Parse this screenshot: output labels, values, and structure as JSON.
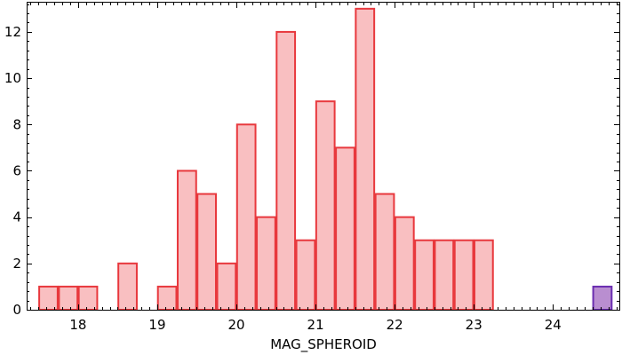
{
  "chart_data": {
    "type": "bar",
    "subtype": "histogram",
    "xlabel": "MAG_SPHEROID",
    "ylabel": "",
    "xlim": [
      17.35,
      24.85
    ],
    "ylim": [
      0,
      13.3
    ],
    "bin_width": 0.25,
    "x_ticks": [
      18,
      19,
      20,
      21,
      22,
      23,
      24
    ],
    "y_ticks": [
      0,
      2,
      4,
      6,
      8,
      10,
      12
    ],
    "grid": false,
    "series": [
      {
        "fill": "#f9bfc1",
        "stroke": "#e8383d",
        "bins": [
          {
            "x0": 17.5,
            "x1": 17.75,
            "count": 1
          },
          {
            "x0": 17.75,
            "x1": 18.0,
            "count": 1
          },
          {
            "x0": 18.0,
            "x1": 18.25,
            "count": 1
          },
          {
            "x0": 18.5,
            "x1": 18.75,
            "count": 2
          },
          {
            "x0": 19.0,
            "x1": 19.25,
            "count": 1
          },
          {
            "x0": 19.25,
            "x1": 19.5,
            "count": 6
          },
          {
            "x0": 19.5,
            "x1": 19.75,
            "count": 5
          },
          {
            "x0": 19.75,
            "x1": 20.0,
            "count": 2
          },
          {
            "x0": 20.0,
            "x1": 20.25,
            "count": 8
          },
          {
            "x0": 20.25,
            "x1": 20.5,
            "count": 4
          },
          {
            "x0": 20.5,
            "x1": 20.75,
            "count": 12
          },
          {
            "x0": 20.75,
            "x1": 21.0,
            "count": 3
          },
          {
            "x0": 21.0,
            "x1": 21.25,
            "count": 9
          },
          {
            "x0": 21.25,
            "x1": 21.5,
            "count": 7
          },
          {
            "x0": 21.5,
            "x1": 21.75,
            "count": 13
          },
          {
            "x0": 21.75,
            "x1": 22.0,
            "count": 5
          },
          {
            "x0": 22.0,
            "x1": 22.25,
            "count": 4
          },
          {
            "x0": 22.25,
            "x1": 22.5,
            "count": 3
          },
          {
            "x0": 22.5,
            "x1": 22.75,
            "count": 3
          },
          {
            "x0": 22.75,
            "x1": 23.0,
            "count": 3
          },
          {
            "x0": 23.0,
            "x1": 23.25,
            "count": 3
          }
        ]
      },
      {
        "fill": "#b98ed0",
        "stroke": "#6a2db0",
        "bins": [
          {
            "x0": 24.5,
            "x1": 24.75,
            "count": 1
          }
        ]
      }
    ]
  }
}
